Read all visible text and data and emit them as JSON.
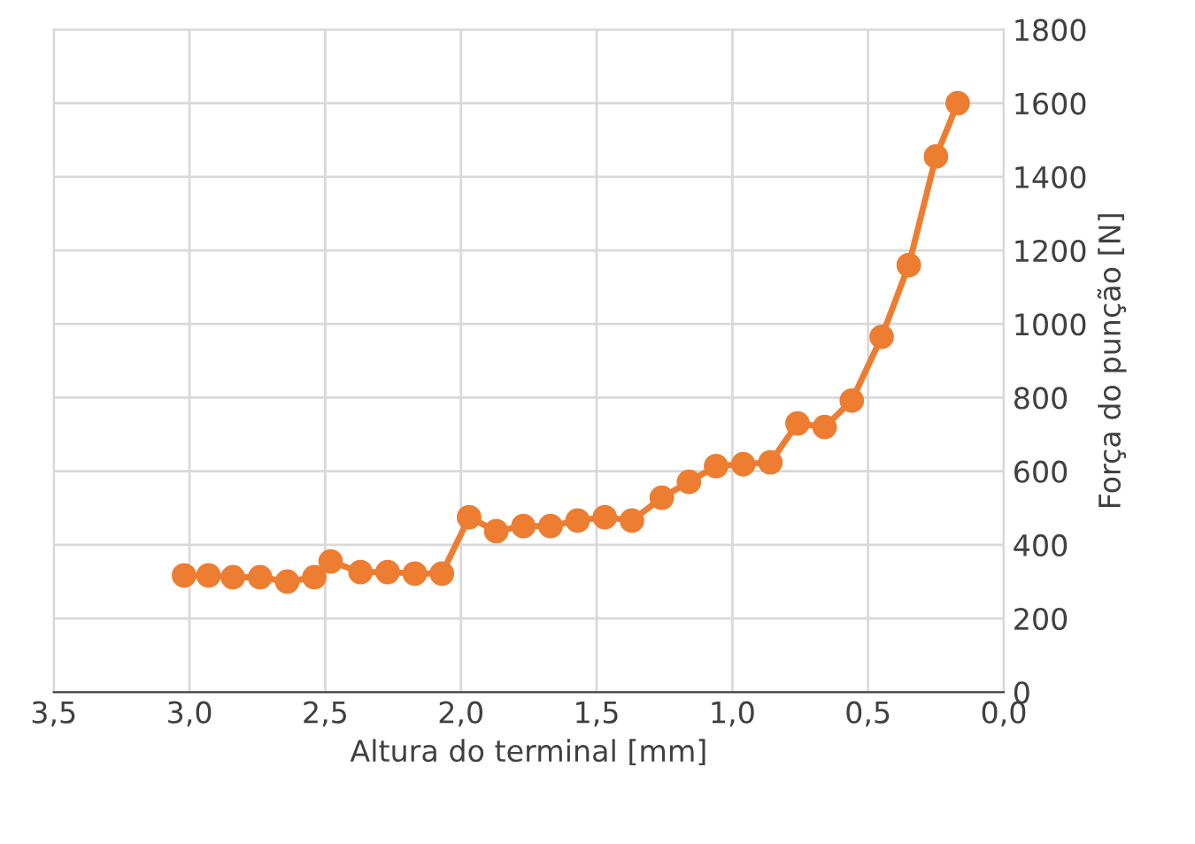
{
  "chart_data": {
    "type": "line",
    "xlabel": "Altura do terminal [mm]",
    "ylabel": "Força do punção [N]",
    "x": [
      3.02,
      2.93,
      2.84,
      2.74,
      2.64,
      2.54,
      2.48,
      2.37,
      2.27,
      2.17,
      2.07,
      1.97,
      1.87,
      1.77,
      1.67,
      1.57,
      1.47,
      1.37,
      1.26,
      1.16,
      1.06,
      0.96,
      0.86,
      0.76,
      0.66,
      0.56,
      0.45,
      0.35,
      0.25,
      0.17
    ],
    "series": [
      {
        "color": "#ed7d31",
        "values": [
          317,
          317,
          312,
          312,
          300,
          312,
          355,
          326,
          326,
          322,
          322,
          475,
          437,
          451,
          451,
          466,
          475,
          466,
          528,
          571,
          614,
          619,
          624,
          730,
          720,
          792,
          965,
          1160,
          1455,
          1600
        ]
      }
    ],
    "xlim": [
      3.5,
      0.0
    ],
    "ylim": [
      0,
      1800
    ],
    "xticks": [
      {
        "value": 3.5,
        "label": "3,5"
      },
      {
        "value": 3.0,
        "label": "3,0"
      },
      {
        "value": 2.5,
        "label": "2,5"
      },
      {
        "value": 2.0,
        "label": "2,0"
      },
      {
        "value": 1.5,
        "label": "1,5"
      },
      {
        "value": 1.0,
        "label": "1,0"
      },
      {
        "value": 0.5,
        "label": "0,5"
      },
      {
        "value": 0.0,
        "label": "0,0"
      }
    ],
    "yticks": [
      0,
      200,
      400,
      600,
      800,
      1000,
      1200,
      1400,
      1600,
      1800
    ],
    "grid": true,
    "marker": "circle",
    "line_style": "solid",
    "legend": false
  }
}
